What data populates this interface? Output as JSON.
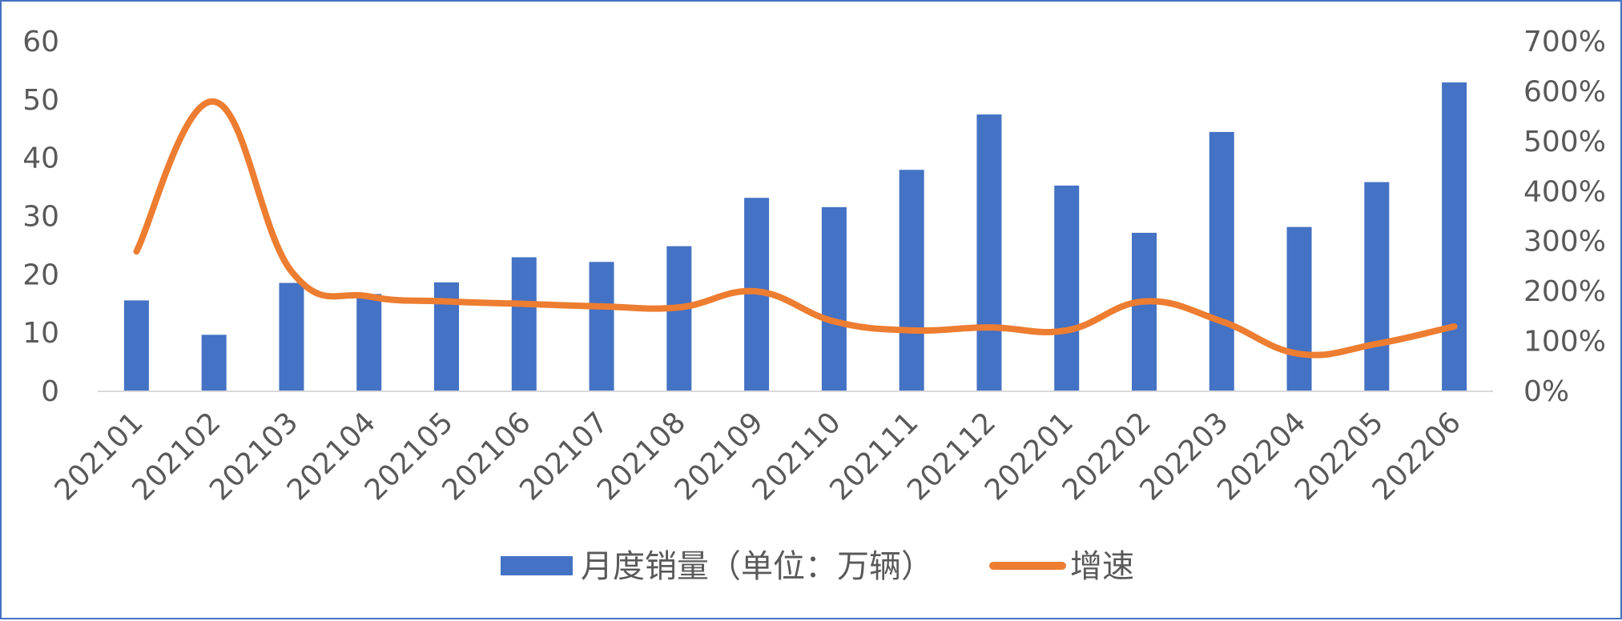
{
  "chart_data": {
    "type": "bar+line",
    "categories": [
      "202101",
      "202102",
      "202103",
      "202104",
      "202105",
      "202106",
      "202107",
      "202108",
      "202109",
      "202110",
      "202111",
      "202112",
      "202201",
      "202202",
      "202203",
      "202204",
      "202205",
      "202206"
    ],
    "series": [
      {
        "name": "月度销量（单位：万辆）",
        "type": "bar",
        "axis": "left",
        "color": "#4472C4",
        "values": [
          15.6,
          9.7,
          18.6,
          16.7,
          18.7,
          23.0,
          22.2,
          24.9,
          33.2,
          31.6,
          38.0,
          47.5,
          35.3,
          27.2,
          44.5,
          28.2,
          35.9,
          53.0
        ]
      },
      {
        "name": "增速",
        "type": "line",
        "smooth": true,
        "axis": "right",
        "color": "#ED7D31",
        "values": [
          2.8,
          5.8,
          2.4,
          1.9,
          1.8,
          1.75,
          1.7,
          1.68,
          2.0,
          1.4,
          1.22,
          1.28,
          1.22,
          1.8,
          1.4,
          0.75,
          0.95,
          1.3
        ]
      }
    ],
    "y_left": {
      "min": 0,
      "max": 60,
      "ticks": [
        "0",
        "10",
        "20",
        "30",
        "40",
        "50",
        "60"
      ]
    },
    "y_right": {
      "min": 0,
      "max": 7,
      "ticks": [
        "0%",
        "100%",
        "200%",
        "300%",
        "400%",
        "500%",
        "600%",
        "700%"
      ]
    },
    "grid": false,
    "legend": "bottom"
  }
}
